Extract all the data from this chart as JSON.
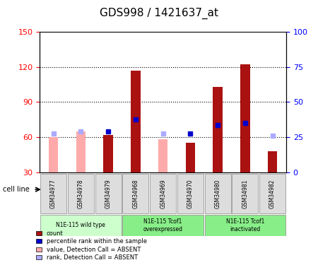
{
  "title": "GDS998 / 1421637_at",
  "samples": [
    "GSM34977",
    "GSM34978",
    "GSM34979",
    "GSM34968",
    "GSM34969",
    "GSM34970",
    "GSM34980",
    "GSM34981",
    "GSM34982"
  ],
  "count_values": [
    null,
    null,
    62,
    117,
    null,
    55,
    103,
    122,
    48
  ],
  "count_absent": [
    60,
    65,
    null,
    null,
    58,
    null,
    null,
    null,
    null
  ],
  "percentile_values": [
    null,
    null,
    65,
    75,
    null,
    63,
    70,
    72,
    null
  ],
  "percentile_absent": [
    63,
    65,
    null,
    null,
    63,
    null,
    null,
    null,
    61
  ],
  "ylim_left": [
    30,
    150
  ],
  "ylim_right": [
    0,
    100
  ],
  "yticks_left": [
    30,
    60,
    90,
    120,
    150
  ],
  "yticks_right": [
    0,
    25,
    50,
    75,
    100
  ],
  "groups": [
    {
      "label": "N1E-115 wild type",
      "indices": [
        0,
        1,
        2
      ],
      "color": "#ccffcc"
    },
    {
      "label": "N1E-115 Tcof1\noverexpressed",
      "indices": [
        3,
        4,
        5
      ],
      "color": "#88ee88"
    },
    {
      "label": "N1E-115 Tcof1\ninactivated",
      "indices": [
        6,
        7,
        8
      ],
      "color": "#88ee88"
    }
  ],
  "bar_color_dark_red": "#aa1111",
  "bar_color_light_pink": "#ffaaaa",
  "marker_color_dark_blue": "#0000cc",
  "marker_color_light_blue": "#aaaaff",
  "bar_width": 0.35,
  "dotted_line_color": "#000000",
  "background_plot": "#ffffff",
  "background_label": "#dddddd",
  "group_colors": [
    "#ccffcc",
    "#88ee88",
    "#88ee88"
  ],
  "legend_items": [
    {
      "label": "count",
      "color": "#aa1111",
      "type": "square"
    },
    {
      "label": "percentile rank within the sample",
      "color": "#0000cc",
      "type": "square"
    },
    {
      "label": "value, Detection Call = ABSENT",
      "color": "#ffaaaa",
      "type": "square"
    },
    {
      "label": "rank, Detection Call = ABSENT",
      "color": "#aaaaff",
      "type": "square"
    }
  ]
}
